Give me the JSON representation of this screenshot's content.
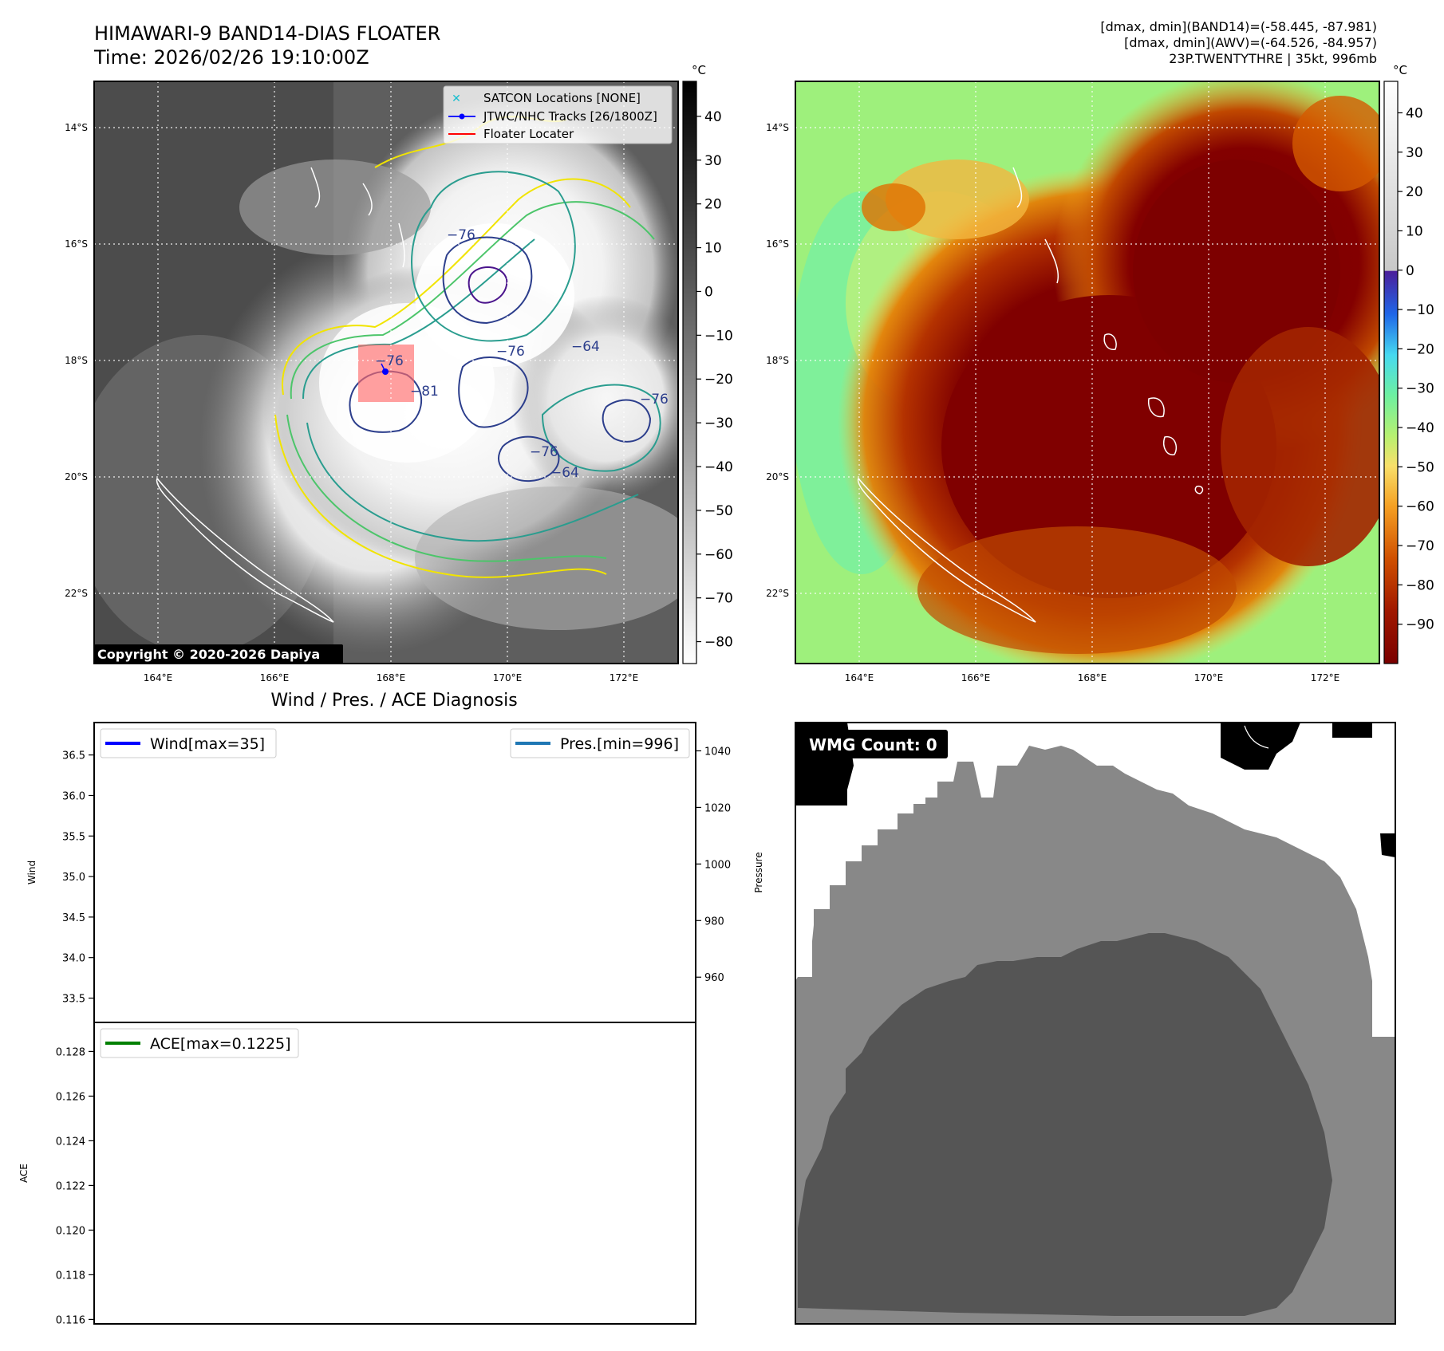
{
  "header": {
    "title_line1": "HIMAWARI-9 BAND14-DIAS FLOATER",
    "title_line2": "Time: 2026/02/26 19:10:00Z",
    "info_line1": "[dmax, dmin](BAND14)=(-58.445, -87.981)",
    "info_line2": "[dmax, dmin](AWV)=(-64.526, -84.957)",
    "info_line3": "23P.TWENTYTHRE | 35kt, 996mb"
  },
  "map_axes": {
    "lat_ticks": [
      "14°S",
      "16°S",
      "18°S",
      "20°S",
      "22°S"
    ],
    "lon_ticks": [
      "164°E",
      "166°E",
      "168°E",
      "170°E",
      "172°E"
    ]
  },
  "band14_panel": {
    "copyright": "Copyright © 2020-2026 Dapiya",
    "colorbar_unit": "°C",
    "colorbar_ticks": [
      "40",
      "30",
      "20",
      "10",
      "0",
      "−10",
      "−20",
      "−30",
      "−40",
      "−50",
      "−60",
      "−70",
      "−80"
    ],
    "contour_labels": [
      "−76",
      "−76",
      "−76",
      "−76",
      "−64",
      "−64",
      "−81",
      "−76"
    ],
    "legend": [
      {
        "label": "SATCON Locations [NONE]",
        "marker": "x-icon",
        "color": "#17becf"
      },
      {
        "label": "JTWC/NHC Tracks [26/1800Z]",
        "marker": "line-dot-icon",
        "color": "#0000ff"
      },
      {
        "label": "Floater Locater",
        "marker": "line-icon",
        "color": "#ff0000"
      }
    ]
  },
  "awv_panel": {
    "colorbar_unit": "°C",
    "colorbar_ticks": [
      "40",
      "30",
      "20",
      "10",
      "0",
      "−10",
      "−20",
      "−30",
      "−40",
      "−50",
      "−60",
      "−70",
      "−80",
      "−90"
    ]
  },
  "diagnosis": {
    "title": "Wind / Pres. / ACE Diagnosis",
    "wind_label": "Wind",
    "pressure_label": "Pressure",
    "ace_label": "ACE",
    "wind_ticks": [
      "36.5",
      "36.0",
      "35.5",
      "35.0",
      "34.5",
      "34.0",
      "33.5"
    ],
    "pressure_ticks": [
      "1040",
      "1020",
      "1000",
      "980",
      "960"
    ],
    "ace_ticks": [
      "0.128",
      "0.126",
      "0.124",
      "0.122",
      "0.120",
      "0.118",
      "0.116"
    ],
    "legend_wind": "Wind[max=35]",
    "legend_pres": "Pres.[min=996]",
    "legend_ace": "ACE[max=0.1225]",
    "color_wind": "#0000ff",
    "color_pres": "#1f77b4",
    "color_ace": "#008000"
  },
  "wmg_panel": {
    "badge": "WMG Count: 0"
  },
  "chart_data": [
    {
      "type": "heatmap",
      "title": "HIMAWARI-9 BAND14-DIAS FLOATER",
      "colorbar": "°C",
      "colorbar_range": [
        -85,
        48
      ],
      "lat_range": [
        "13.2°S",
        "23.2°S"
      ],
      "lon_range": [
        "163°E",
        "173°E"
      ]
    },
    {
      "type": "heatmap",
      "colorbar": "°C",
      "colorbar_range": [
        -100,
        48
      ],
      "lat_range": [
        "13.2°S",
        "23.2°S"
      ],
      "lon_range": [
        "163°E",
        "173°E"
      ]
    },
    {
      "type": "line",
      "title": "Wind / Pres. / ACE Diagnosis",
      "ylabel": "Wind",
      "y2label": "Pressure",
      "ylim": [
        33.2,
        36.9
      ],
      "y2lim": [
        944,
        1050
      ],
      "series": [
        {
          "name": "Wind[max=35]",
          "values": []
        },
        {
          "name": "Pres.[min=996]",
          "values": []
        }
      ]
    },
    {
      "type": "line",
      "ylabel": "ACE",
      "ylim": [
        0.1158,
        0.1293
      ],
      "series": [
        {
          "name": "ACE[max=0.1225]",
          "values": []
        }
      ]
    }
  ]
}
